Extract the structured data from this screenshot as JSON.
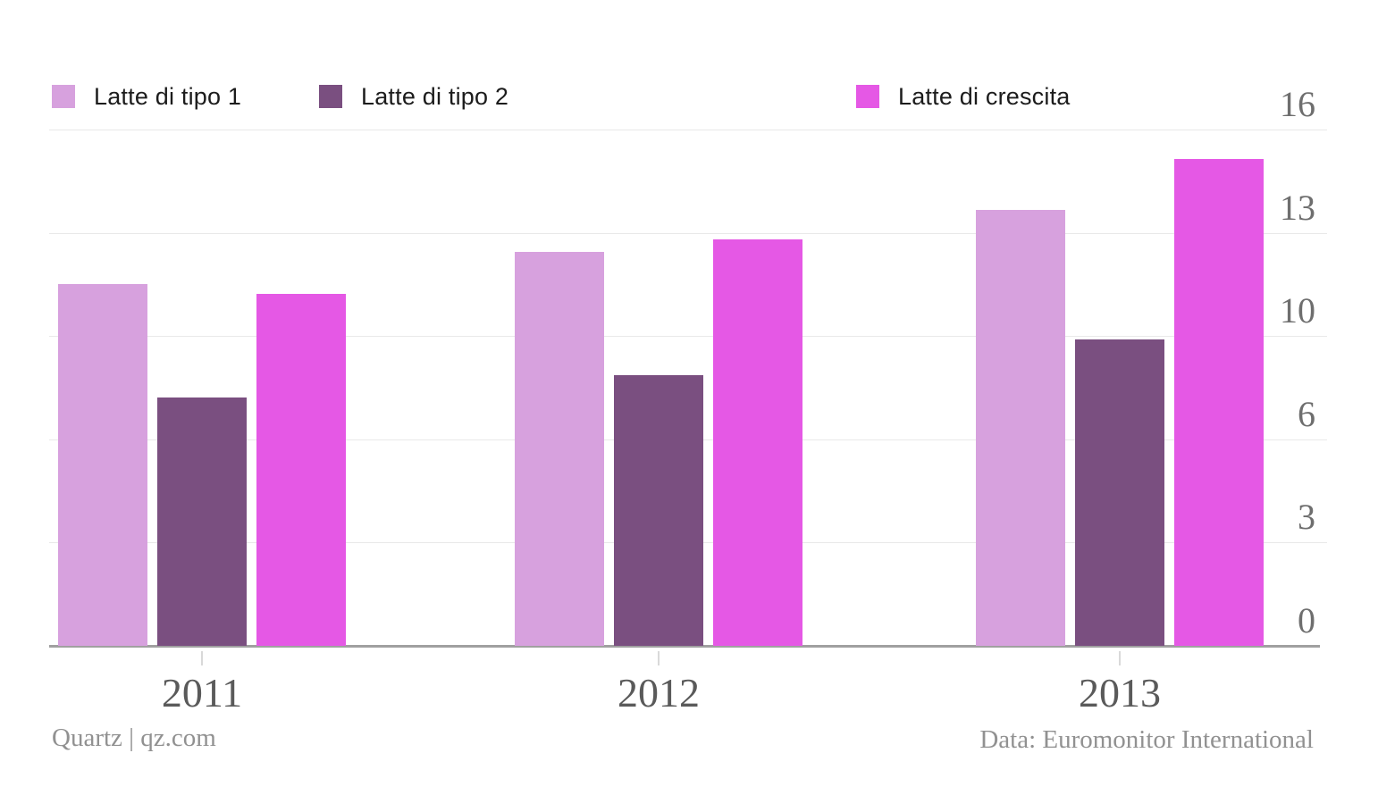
{
  "chart_data": {
    "type": "bar",
    "categories": [
      "2011",
      "2012",
      "2013"
    ],
    "series": [
      {
        "name": "Latte di tipo 1",
        "color": "#d7a1de",
        "values": [
          11.2,
          12.2,
          13.5
        ]
      },
      {
        "name": "Latte di tipo 2",
        "color": "#7a4f80",
        "values": [
          7.7,
          8.4,
          9.5
        ]
      },
      {
        "name": "Latte di crescita",
        "color": "#e558e5",
        "values": [
          10.9,
          12.6,
          15.1
        ]
      }
    ],
    "ylim": [
      0,
      16
    ],
    "ytick_values": [
      0,
      3.2,
      6.4,
      9.6,
      12.8,
      16
    ],
    "ytick_labels": [
      "0",
      "3",
      "6",
      "10",
      "13",
      "16"
    ],
    "legend_position": "top",
    "yaxis_side": "right",
    "grid": true,
    "grid_color": "#e9e9e9",
    "baseline_color": "#a0a0a0"
  },
  "footer": {
    "source_left": "Quartz | qz.com",
    "source_right": "Data: Euromonitor International"
  }
}
